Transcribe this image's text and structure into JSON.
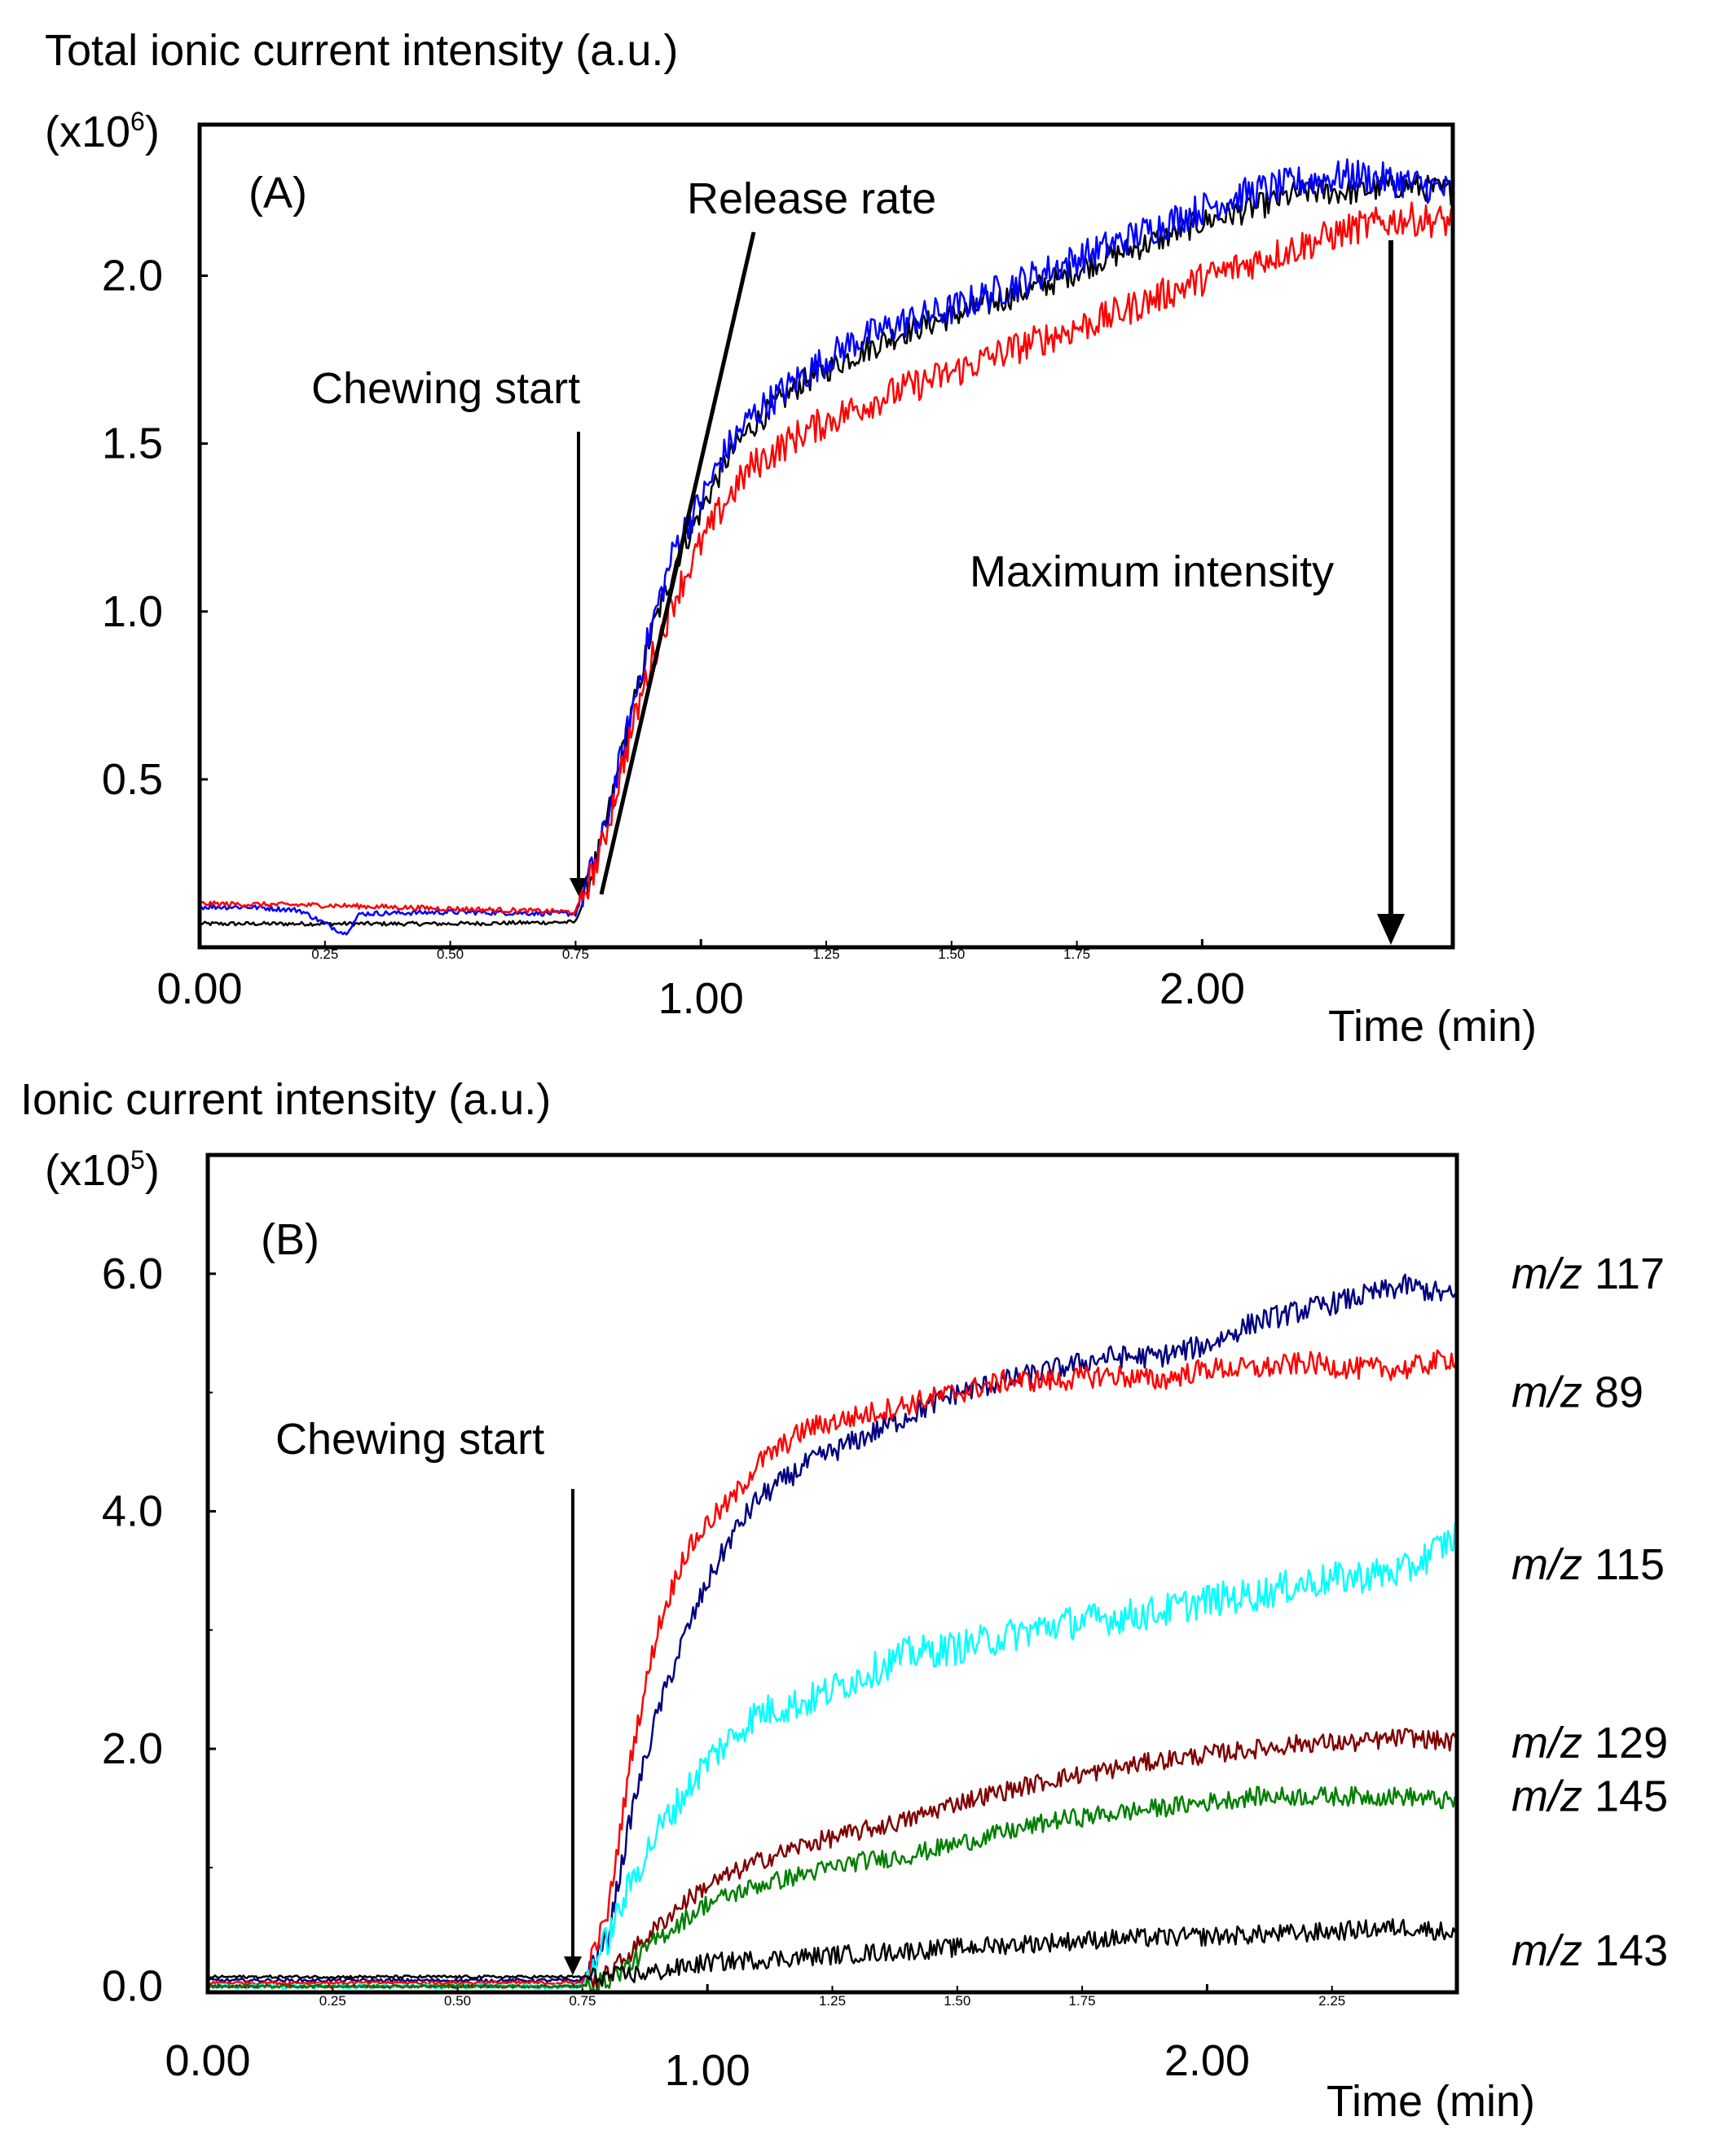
{
  "chart_data": [
    {
      "type": "line",
      "panel_label": "(A)",
      "ylabel": "Total ionic current intensity (a.u.)",
      "y_multiplier": "(x10",
      "y_multiplier_exp": "6",
      "y_multiplier_close": ")",
      "xlabel": "Time (min)",
      "xlim": [
        0,
        2.5
      ],
      "ylim": [
        0,
        2.45
      ],
      "y_ticks": [
        0.5,
        1.0,
        1.5,
        2.0
      ],
      "y_tick_labels": [
        "0.5",
        "1.0",
        "1.5",
        "2.0"
      ],
      "x_major_ticks": [
        0.0,
        1.0,
        2.0
      ],
      "x_major_labels": [
        "0.00",
        "1.00",
        "2.00"
      ],
      "x_minor_ticks": [
        0.25,
        0.5,
        0.75,
        1.25,
        1.5,
        1.75
      ],
      "x_minor_labels": [
        "0.25",
        "0.50",
        "0.75",
        "1.25",
        "1.50",
        "1.75"
      ],
      "annotations": {
        "chewing_start": "Chewing start",
        "release_rate": "Release rate",
        "maximum_intensity": "Maximum intensity"
      },
      "series": [
        {
          "color": "#000000",
          "points": [
            [
              0.0,
              0.07
            ],
            [
              0.25,
              0.07
            ],
            [
              0.5,
              0.07
            ],
            [
              0.75,
              0.075
            ],
            [
              0.8,
              0.3
            ],
            [
              0.85,
              0.62
            ],
            [
              0.9,
              0.93
            ],
            [
              0.95,
              1.15
            ],
            [
              1.0,
              1.3
            ],
            [
              1.05,
              1.45
            ],
            [
              1.1,
              1.55
            ],
            [
              1.2,
              1.68
            ],
            [
              1.3,
              1.76
            ],
            [
              1.4,
              1.83
            ],
            [
              1.5,
              1.88
            ],
            [
              1.6,
              1.93
            ],
            [
              1.7,
              1.98
            ],
            [
              1.8,
              2.05
            ],
            [
              1.9,
              2.1
            ],
            [
              2.0,
              2.16
            ],
            [
              2.1,
              2.2
            ],
            [
              2.2,
              2.25
            ],
            [
              2.3,
              2.25
            ],
            [
              2.4,
              2.27
            ],
            [
              2.5,
              2.25
            ]
          ]
        },
        {
          "color": "#0000ff",
          "points": [
            [
              0.0,
              0.12
            ],
            [
              0.1,
              0.12
            ],
            [
              0.2,
              0.11
            ],
            [
              0.29,
              0.04
            ],
            [
              0.32,
              0.1
            ],
            [
              0.5,
              0.105
            ],
            [
              0.75,
              0.1
            ],
            [
              0.8,
              0.3
            ],
            [
              0.85,
              0.62
            ],
            [
              0.9,
              0.95
            ],
            [
              0.95,
              1.2
            ],
            [
              1.0,
              1.33
            ],
            [
              1.05,
              1.48
            ],
            [
              1.1,
              1.58
            ],
            [
              1.2,
              1.7
            ],
            [
              1.3,
              1.8
            ],
            [
              1.4,
              1.86
            ],
            [
              1.5,
              1.9
            ],
            [
              1.6,
              1.96
            ],
            [
              1.7,
              2.02
            ],
            [
              1.8,
              2.08
            ],
            [
              1.9,
              2.14
            ],
            [
              2.0,
              2.2
            ],
            [
              2.1,
              2.25
            ],
            [
              2.2,
              2.28
            ],
            [
              2.3,
              2.3
            ],
            [
              2.4,
              2.28
            ],
            [
              2.5,
              2.25
            ]
          ]
        },
        {
          "color": "#ff0000",
          "points": [
            [
              0.0,
              0.13
            ],
            [
              0.25,
              0.125
            ],
            [
              0.5,
              0.115
            ],
            [
              0.75,
              0.105
            ],
            [
              0.8,
              0.28
            ],
            [
              0.85,
              0.58
            ],
            [
              0.9,
              0.85
            ],
            [
              0.95,
              1.05
            ],
            [
              1.0,
              1.2
            ],
            [
              1.05,
              1.33
            ],
            [
              1.1,
              1.43
            ],
            [
              1.2,
              1.53
            ],
            [
              1.3,
              1.6
            ],
            [
              1.4,
              1.66
            ],
            [
              1.5,
              1.71
            ],
            [
              1.6,
              1.77
            ],
            [
              1.7,
              1.82
            ],
            [
              1.8,
              1.87
            ],
            [
              1.9,
              1.93
            ],
            [
              2.0,
              1.99
            ],
            [
              2.1,
              2.04
            ],
            [
              2.2,
              2.09
            ],
            [
              2.3,
              2.14
            ],
            [
              2.4,
              2.17
            ],
            [
              2.5,
              2.16
            ]
          ]
        }
      ]
    },
    {
      "type": "line",
      "panel_label": "(B)",
      "ylabel": "Ionic current intensity (a.u.)",
      "y_multiplier": "(x10",
      "y_multiplier_exp": "5",
      "y_multiplier_close": ")",
      "xlabel": "Time (min)",
      "xlim": [
        0,
        2.5
      ],
      "ylim": [
        -0.05,
        7.0
      ],
      "y_ticks": [
        0.0,
        2.0,
        4.0,
        6.0
      ],
      "y_tick_labels": [
        "0.0",
        "2.0",
        "4.0",
        "6.0"
      ],
      "y_minor_ticks": [
        1.0,
        3.0,
        5.0
      ],
      "x_major_ticks": [
        0.0,
        1.0,
        2.0
      ],
      "x_major_labels": [
        "0.00",
        "1.00",
        "2.00"
      ],
      "x_minor_ticks": [
        0.25,
        0.5,
        0.75,
        1.25,
        1.5,
        1.75,
        2.25
      ],
      "x_minor_labels": [
        "0.25",
        "0.50",
        "0.75",
        "1.25",
        "1.50",
        "1.75",
        "2.25"
      ],
      "annotations": {
        "chewing_start": "Chewing start"
      },
      "series": [
        {
          "name_prefix": "m/z",
          "name_value": "117",
          "color": "#000080",
          "label_y": 6.0,
          "points": [
            [
              0.0,
              0.05
            ],
            [
              0.75,
              0.05
            ],
            [
              0.8,
              0.4
            ],
            [
              0.85,
              1.5
            ],
            [
              0.9,
              2.3
            ],
            [
              0.95,
              2.9
            ],
            [
              1.0,
              3.4
            ],
            [
              1.05,
              3.8
            ],
            [
              1.1,
              4.1
            ],
            [
              1.2,
              4.4
            ],
            [
              1.3,
              4.6
            ],
            [
              1.4,
              4.8
            ],
            [
              1.5,
              5.0
            ],
            [
              1.6,
              5.1
            ],
            [
              1.7,
              5.2
            ],
            [
              1.8,
              5.3
            ],
            [
              1.9,
              5.3
            ],
            [
              2.0,
              5.4
            ],
            [
              2.1,
              5.6
            ],
            [
              2.2,
              5.7
            ],
            [
              2.3,
              5.8
            ],
            [
              2.4,
              5.9
            ],
            [
              2.5,
              5.8
            ]
          ]
        },
        {
          "name_prefix": "m/z",
          "name_value": "89",
          "color": "#ff0000",
          "label_y": 5.0,
          "points": [
            [
              0.0,
              0.03
            ],
            [
              0.75,
              0.03
            ],
            [
              0.8,
              0.6
            ],
            [
              0.85,
              2.0
            ],
            [
              0.9,
              3.0
            ],
            [
              0.95,
              3.6
            ],
            [
              1.0,
              3.9
            ],
            [
              1.05,
              4.1
            ],
            [
              1.1,
              4.4
            ],
            [
              1.2,
              4.7
            ],
            [
              1.3,
              4.8
            ],
            [
              1.4,
              4.9
            ],
            [
              1.5,
              5.0
            ],
            [
              1.6,
              5.1
            ],
            [
              1.7,
              5.1
            ],
            [
              1.8,
              5.15
            ],
            [
              1.9,
              5.1
            ],
            [
              2.0,
              5.2
            ],
            [
              2.1,
              5.2
            ],
            [
              2.2,
              5.25
            ],
            [
              2.3,
              5.2
            ],
            [
              2.4,
              5.2
            ],
            [
              2.5,
              5.3
            ]
          ]
        },
        {
          "name_prefix": "m/z",
          "name_value": "115",
          "color": "#00ffff",
          "label_y": 3.55,
          "points": [
            [
              0.0,
              0.0
            ],
            [
              0.75,
              0.0
            ],
            [
              0.8,
              0.4
            ],
            [
              0.85,
              0.9
            ],
            [
              0.9,
              1.3
            ],
            [
              0.95,
              1.6
            ],
            [
              1.0,
              1.9
            ],
            [
              1.05,
              2.1
            ],
            [
              1.1,
              2.3
            ],
            [
              1.2,
              2.4
            ],
            [
              1.3,
              2.6
            ],
            [
              1.4,
              2.8
            ],
            [
              1.5,
              2.85
            ],
            [
              1.6,
              2.95
            ],
            [
              1.7,
              3.05
            ],
            [
              1.8,
              3.1
            ],
            [
              1.9,
              3.15
            ],
            [
              2.0,
              3.25
            ],
            [
              2.1,
              3.3
            ],
            [
              2.2,
              3.4
            ],
            [
              2.3,
              3.45
            ],
            [
              2.4,
              3.5
            ],
            [
              2.5,
              3.8
            ]
          ]
        },
        {
          "name_prefix": "m/z",
          "name_value": "129",
          "color": "#800000",
          "label_y": 2.05,
          "points": [
            [
              0.0,
              0.0
            ],
            [
              0.75,
              0.0
            ],
            [
              0.8,
              0.1
            ],
            [
              0.85,
              0.3
            ],
            [
              0.9,
              0.5
            ],
            [
              0.95,
              0.7
            ],
            [
              1.0,
              0.85
            ],
            [
              1.1,
              1.05
            ],
            [
              1.2,
              1.2
            ],
            [
              1.3,
              1.3
            ],
            [
              1.4,
              1.4
            ],
            [
              1.5,
              1.55
            ],
            [
              1.6,
              1.65
            ],
            [
              1.7,
              1.75
            ],
            [
              1.8,
              1.82
            ],
            [
              1.9,
              1.9
            ],
            [
              2.0,
              1.95
            ],
            [
              2.1,
              2.0
            ],
            [
              2.2,
              2.05
            ],
            [
              2.3,
              2.05
            ],
            [
              2.4,
              2.1
            ],
            [
              2.5,
              2.05
            ]
          ]
        },
        {
          "name_prefix": "m/z",
          "name_value": "145",
          "color": "#008000",
          "label_y": 1.6,
          "points": [
            [
              0.0,
              0.0
            ],
            [
              0.75,
              0.0
            ],
            [
              0.8,
              0.05
            ],
            [
              0.85,
              0.2
            ],
            [
              0.9,
              0.4
            ],
            [
              0.95,
              0.55
            ],
            [
              1.0,
              0.7
            ],
            [
              1.1,
              0.85
            ],
            [
              1.2,
              0.95
            ],
            [
              1.3,
              1.05
            ],
            [
              1.4,
              1.1
            ],
            [
              1.5,
              1.2
            ],
            [
              1.6,
              1.3
            ],
            [
              1.7,
              1.4
            ],
            [
              1.8,
              1.45
            ],
            [
              1.9,
              1.5
            ],
            [
              2.0,
              1.55
            ],
            [
              2.1,
              1.6
            ],
            [
              2.2,
              1.6
            ],
            [
              2.3,
              1.6
            ],
            [
              2.4,
              1.6
            ],
            [
              2.5,
              1.55
            ]
          ]
        },
        {
          "name_prefix": "m/z",
          "name_value": "143",
          "color": "#000000",
          "label_y": 0.3,
          "points": [
            [
              0.0,
              0.08
            ],
            [
              0.75,
              0.08
            ],
            [
              0.8,
              0.08
            ],
            [
              0.9,
              0.12
            ],
            [
              1.0,
              0.2
            ],
            [
              1.2,
              0.25
            ],
            [
              1.4,
              0.3
            ],
            [
              1.6,
              0.35
            ],
            [
              1.8,
              0.4
            ],
            [
              2.0,
              0.42
            ],
            [
              2.2,
              0.45
            ],
            [
              2.4,
              0.5
            ],
            [
              2.5,
              0.45
            ]
          ]
        }
      ]
    }
  ]
}
